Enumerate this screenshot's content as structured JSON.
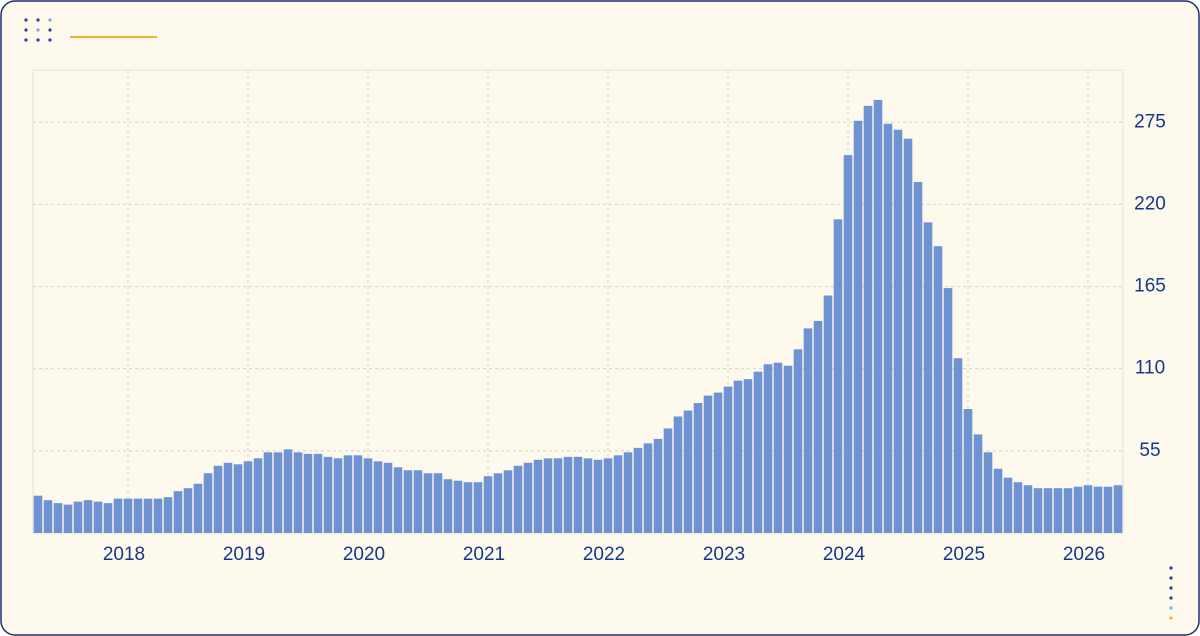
{
  "chart_data": {
    "type": "bar",
    "categories": [
      null,
      null,
      null,
      null,
      null,
      null,
      null,
      null,
      null,
      "2018",
      null,
      null,
      null,
      null,
      null,
      null,
      null,
      null,
      null,
      null,
      null,
      "2019",
      null,
      null,
      null,
      null,
      null,
      null,
      null,
      null,
      null,
      null,
      null,
      "2020",
      null,
      null,
      null,
      null,
      null,
      null,
      null,
      null,
      null,
      null,
      null,
      "2021",
      null,
      null,
      null,
      null,
      null,
      null,
      null,
      null,
      null,
      null,
      null,
      "2022",
      null,
      null,
      null,
      null,
      null,
      null,
      null,
      null,
      null,
      null,
      null,
      "2023",
      null,
      null,
      null,
      null,
      null,
      null,
      null,
      null,
      null,
      null,
      null,
      "2024",
      null,
      null,
      null,
      null,
      null,
      null,
      null,
      null,
      null,
      null,
      null,
      "2025",
      null,
      null,
      null,
      null,
      null,
      null,
      null,
      null,
      null,
      null,
      null,
      "2026",
      null,
      null,
      null
    ],
    "values": [
      25,
      22,
      20,
      19,
      21,
      22,
      21,
      20,
      23,
      23,
      23,
      23,
      23,
      24,
      28,
      30,
      33,
      40,
      45,
      47,
      46,
      48,
      50,
      54,
      54,
      56,
      54,
      53,
      53,
      51,
      50,
      52,
      52,
      50,
      48,
      47,
      44,
      42,
      42,
      40,
      40,
      36,
      35,
      34,
      34,
      38,
      40,
      42,
      45,
      47,
      49,
      50,
      50,
      51,
      51,
      50,
      49,
      50,
      52,
      54,
      57,
      60,
      63,
      70,
      78,
      82,
      87,
      92,
      94,
      98,
      102,
      103,
      108,
      113,
      114,
      112,
      123,
      137,
      142,
      159,
      210,
      253,
      276,
      286,
      290,
      274,
      270,
      264,
      235,
      208,
      192,
      164,
      117,
      83,
      66,
      54,
      43,
      37,
      34,
      32,
      30,
      30,
      30,
      30,
      31,
      32,
      31,
      31,
      32
    ],
    "color": "#6f93d2",
    "ylim": [
      0,
      310
    ],
    "yticks": [
      55,
      110,
      165,
      220,
      275
    ],
    "grid": true
  }
}
